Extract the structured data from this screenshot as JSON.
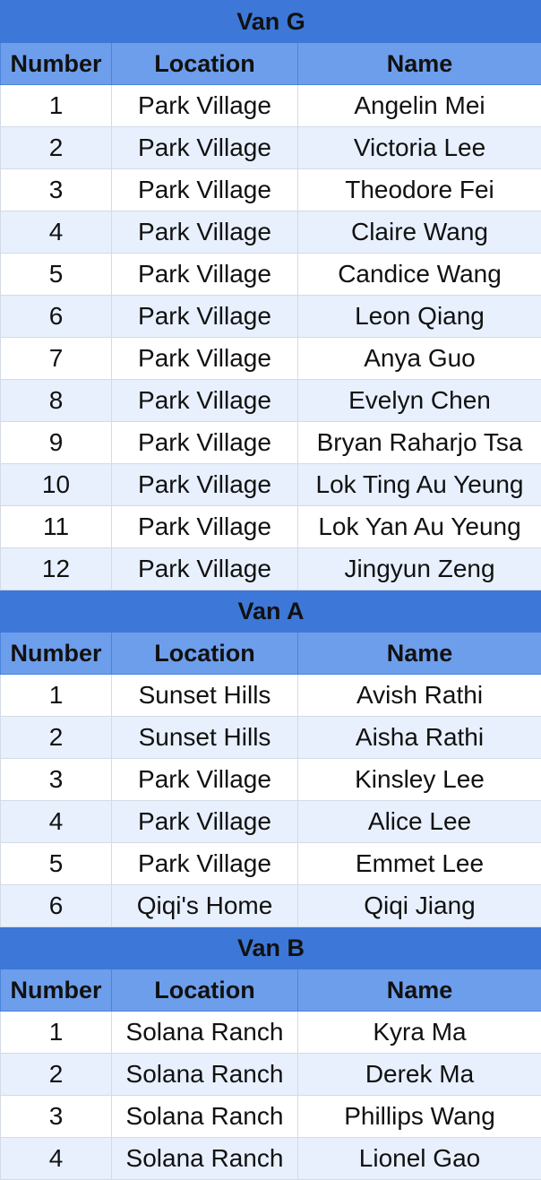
{
  "columns": [
    "Number",
    "Location",
    "Name"
  ],
  "groups": [
    {
      "title": "Van G",
      "rows": [
        [
          "1",
          "Park Village",
          "Angelin Mei"
        ],
        [
          "2",
          "Park Village",
          "Victoria Lee"
        ],
        [
          "3",
          "Park Village",
          "Theodore Fei"
        ],
        [
          "4",
          "Park Village",
          "Claire Wang"
        ],
        [
          "5",
          "Park Village",
          "Candice Wang"
        ],
        [
          "6",
          "Park Village",
          "Leon Qiang"
        ],
        [
          "7",
          "Park Village",
          "Anya Guo"
        ],
        [
          "8",
          "Park Village",
          "Evelyn Chen"
        ],
        [
          "9",
          "Park Village",
          "Bryan Raharjo Tsa"
        ],
        [
          "10",
          "Park Village",
          "Lok Ting Au Yeung"
        ],
        [
          "11",
          "Park Village",
          "Lok Yan Au Yeung"
        ],
        [
          "12",
          "Park Village",
          "Jingyun Zeng"
        ]
      ]
    },
    {
      "title": "Van A",
      "rows": [
        [
          "1",
          "Sunset Hills",
          "Avish Rathi"
        ],
        [
          "2",
          "Sunset Hills",
          "Aisha Rathi"
        ],
        [
          "3",
          "Park Village",
          "Kinsley Lee"
        ],
        [
          "4",
          "Park Village",
          "Alice Lee"
        ],
        [
          "5",
          "Park Village",
          "Emmet Lee"
        ],
        [
          "6",
          "Qiqi's Home",
          "Qiqi Jiang"
        ]
      ]
    },
    {
      "title": "Van B",
      "rows": [
        [
          "1",
          "Solana Ranch",
          "Kyra Ma"
        ],
        [
          "2",
          "Solana Ranch",
          "Derek Ma"
        ],
        [
          "3",
          "Solana Ranch",
          "Phillips Wang"
        ],
        [
          "4",
          "Solana Ranch",
          "Lionel Gao"
        ]
      ]
    }
  ],
  "colors": {
    "title_bg": "#3d78d8",
    "header_bg": "#6d9eeb",
    "stripe_bg": "#e8f0fe",
    "row_bg": "#ffffff"
  }
}
